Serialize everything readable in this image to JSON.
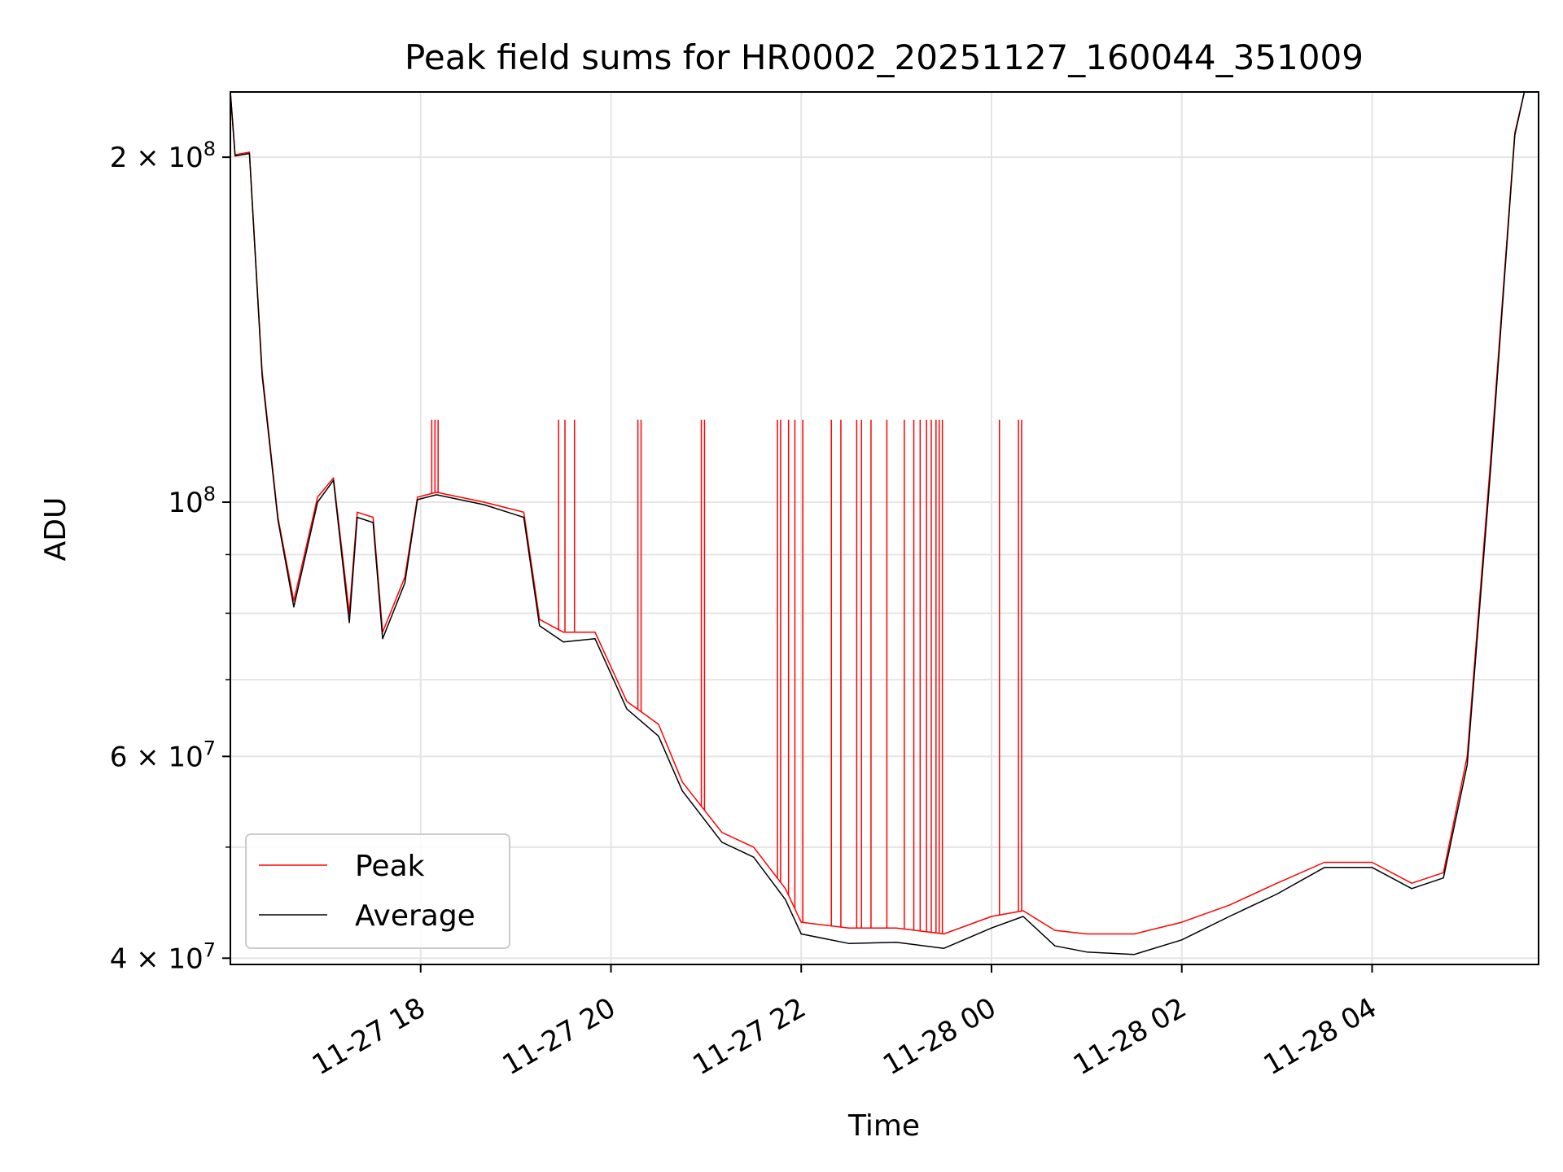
{
  "chart_data": {
    "type": "line",
    "title": "Peak field sums for HR0002_20251127_160044_351009",
    "xlabel": "Time",
    "ylabel": "ADU",
    "y_scale": "log",
    "ylim": [
      39500000,
      228000000
    ],
    "xlim": [
      "2025-11-27 16:00",
      "2025-11-28 05:45"
    ],
    "grid": true,
    "legend_position": "lower-left",
    "x_ticks": [
      {
        "t": "2025-11-27 18:00",
        "label": "11-27 18"
      },
      {
        "t": "2025-11-27 20:00",
        "label": "11-27 20"
      },
      {
        "t": "2025-11-27 22:00",
        "label": "11-27 22"
      },
      {
        "t": "2025-11-28 00:00",
        "label": "11-28 00"
      },
      {
        "t": "2025-11-28 02:00",
        "label": "11-28 02"
      },
      {
        "t": "2025-11-28 04:00",
        "label": "11-28 04"
      }
    ],
    "y_major_ticks": [
      {
        "value": 40000000,
        "base": "4 × 10",
        "exp": "7"
      },
      {
        "value": 60000000,
        "base": "6 × 10",
        "exp": "7"
      },
      {
        "value": 100000000,
        "base": "10",
        "exp": "8"
      },
      {
        "value": 200000000,
        "base": "2 × 10",
        "exp": "8"
      }
    ],
    "y_minor_ticks": [
      50000000,
      70000000,
      80000000,
      90000000
    ],
    "series": [
      {
        "name": "Peak",
        "color": "#ff0000",
        "points": [
          [
            "2025-11-27 16:00",
            228000000
          ],
          [
            "2025-11-27 16:03",
            201000000
          ],
          [
            "2025-11-27 16:12",
            202000000
          ],
          [
            "2025-11-27 16:20",
            130000000
          ],
          [
            "2025-11-27 16:30",
            97000000
          ],
          [
            "2025-11-27 16:40",
            82000000
          ],
          [
            "2025-11-27 16:55",
            101000000
          ],
          [
            "2025-11-27 17:05",
            105000000
          ],
          [
            "2025-11-27 17:15",
            80000000
          ],
          [
            "2025-11-27 17:20",
            98000000
          ],
          [
            "2025-11-27 17:30",
            97000000
          ],
          [
            "2025-11-27 17:36",
            77000000
          ],
          [
            "2025-11-27 17:50",
            86000000
          ],
          [
            "2025-11-27 17:58",
            101000000
          ],
          [
            "2025-11-27 18:10",
            102000000
          ],
          [
            "2025-11-27 18:40",
            100000000
          ],
          [
            "2025-11-27 19:05",
            98000000
          ],
          [
            "2025-11-27 19:15",
            79000000
          ],
          [
            "2025-11-27 19:30",
            77000000
          ],
          [
            "2025-11-27 19:50",
            77000000
          ],
          [
            "2025-11-27 20:10",
            67000000
          ],
          [
            "2025-11-27 20:30",
            64000000
          ],
          [
            "2025-11-27 20:45",
            57000000
          ],
          [
            "2025-11-27 21:10",
            51500000
          ],
          [
            "2025-11-27 21:30",
            50000000
          ],
          [
            "2025-11-27 21:50",
            46000000
          ],
          [
            "2025-11-27 22:00",
            43000000
          ],
          [
            "2025-11-27 22:30",
            42500000
          ],
          [
            "2025-11-27 23:00",
            42500000
          ],
          [
            "2025-11-27 23:30",
            42000000
          ],
          [
            "2025-11-28 00:00",
            43500000
          ],
          [
            "2025-11-28 00:20",
            44000000
          ],
          [
            "2025-11-28 00:40",
            42300000
          ],
          [
            "2025-11-28 01:00",
            42000000
          ],
          [
            "2025-11-28 01:30",
            42000000
          ],
          [
            "2025-11-28 02:00",
            43000000
          ],
          [
            "2025-11-28 02:30",
            44500000
          ],
          [
            "2025-11-28 03:00",
            46500000
          ],
          [
            "2025-11-28 03:30",
            48500000
          ],
          [
            "2025-11-28 04:00",
            48500000
          ],
          [
            "2025-11-28 04:25",
            46500000
          ],
          [
            "2025-11-28 04:45",
            47500000
          ],
          [
            "2025-11-28 05:00",
            60000000
          ],
          [
            "2025-11-28 05:15",
            110000000
          ],
          [
            "2025-11-28 05:30",
            210000000
          ],
          [
            "2025-11-28 05:36",
            228000000
          ]
        ],
        "spikes_to_top": [
          "2025-11-27 18:07",
          "2025-11-27 18:09",
          "2025-11-27 18:11",
          "2025-11-27 19:27",
          "2025-11-27 19:31",
          "2025-11-27 19:37",
          "2025-11-27 20:17",
          "2025-11-27 20:19",
          "2025-11-27 20:57",
          "2025-11-27 20:59",
          "2025-11-27 21:45",
          "2025-11-27 21:47",
          "2025-11-27 21:52",
          "2025-11-27 21:56",
          "2025-11-27 22:01",
          "2025-11-27 22:19",
          "2025-11-27 22:25",
          "2025-11-27 22:35",
          "2025-11-27 22:38",
          "2025-11-27 22:44",
          "2025-11-27 22:54",
          "2025-11-27 23:05",
          "2025-11-27 23:11",
          "2025-11-27 23:15",
          "2025-11-27 23:19",
          "2025-11-27 23:22",
          "2025-11-27 23:25",
          "2025-11-27 23:27",
          "2025-11-27 23:29",
          "2025-11-28 00:05",
          "2025-11-28 00:17",
          "2025-11-28 00:19"
        ]
      },
      {
        "name": "Average",
        "color": "#000000",
        "points": [
          [
            "2025-11-27 16:00",
            228000000
          ],
          [
            "2025-11-27 16:03",
            200500000
          ],
          [
            "2025-11-27 16:12",
            201500000
          ],
          [
            "2025-11-27 16:20",
            129000000
          ],
          [
            "2025-11-27 16:30",
            96500000
          ],
          [
            "2025-11-27 16:40",
            81000000
          ],
          [
            "2025-11-27 16:55",
            100000000
          ],
          [
            "2025-11-27 17:05",
            104500000
          ],
          [
            "2025-11-27 17:15",
            78500000
          ],
          [
            "2025-11-27 17:20",
            97000000
          ],
          [
            "2025-11-27 17:30",
            96000000
          ],
          [
            "2025-11-27 17:36",
            76000000
          ],
          [
            "2025-11-27 17:50",
            85000000
          ],
          [
            "2025-11-27 17:58",
            100500000
          ],
          [
            "2025-11-27 18:10",
            101500000
          ],
          [
            "2025-11-27 18:40",
            99500000
          ],
          [
            "2025-11-27 19:05",
            97000000
          ],
          [
            "2025-11-27 19:15",
            78000000
          ],
          [
            "2025-11-27 19:30",
            75500000
          ],
          [
            "2025-11-27 19:50",
            76000000
          ],
          [
            "2025-11-27 20:10",
            66000000
          ],
          [
            "2025-11-27 20:30",
            62500000
          ],
          [
            "2025-11-27 20:45",
            56000000
          ],
          [
            "2025-11-27 21:10",
            50500000
          ],
          [
            "2025-11-27 21:30",
            49000000
          ],
          [
            "2025-11-27 21:50",
            45000000
          ],
          [
            "2025-11-27 22:00",
            42000000
          ],
          [
            "2025-11-27 22:30",
            41200000
          ],
          [
            "2025-11-27 23:00",
            41300000
          ],
          [
            "2025-11-27 23:30",
            40800000
          ],
          [
            "2025-11-28 00:00",
            42500000
          ],
          [
            "2025-11-28 00:20",
            43500000
          ],
          [
            "2025-11-28 00:40",
            41000000
          ],
          [
            "2025-11-28 01:00",
            40500000
          ],
          [
            "2025-11-28 01:30",
            40300000
          ],
          [
            "2025-11-28 02:00",
            41500000
          ],
          [
            "2025-11-28 02:30",
            43500000
          ],
          [
            "2025-11-28 03:00",
            45500000
          ],
          [
            "2025-11-28 03:30",
            48000000
          ],
          [
            "2025-11-28 04:00",
            48000000
          ],
          [
            "2025-11-28 04:25",
            46000000
          ],
          [
            "2025-11-28 04:45",
            47000000
          ],
          [
            "2025-11-28 05:00",
            59000000
          ],
          [
            "2025-11-28 05:15",
            108000000
          ],
          [
            "2025-11-28 05:30",
            209000000
          ],
          [
            "2025-11-28 05:36",
            228000000
          ]
        ]
      }
    ]
  }
}
